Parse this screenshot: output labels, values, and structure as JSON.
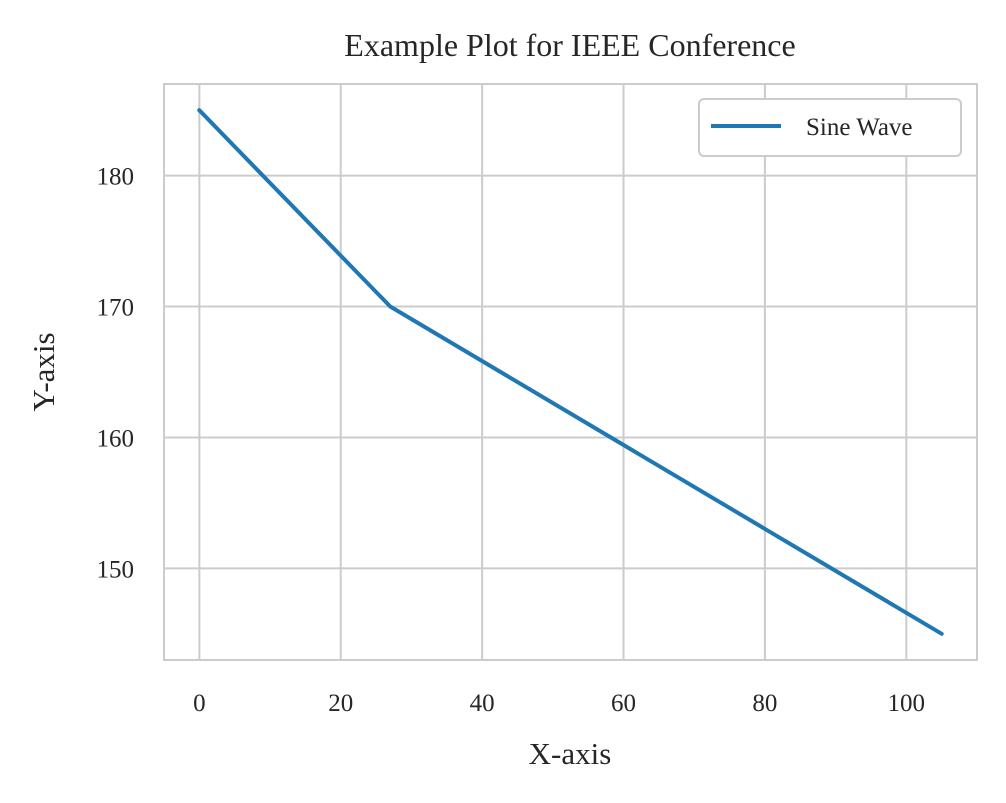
{
  "chart_data": {
    "type": "line",
    "title": "Example Plot for IEEE Conference",
    "xlabel": "X-axis",
    "ylabel": "Y-axis",
    "xlim": [
      -5,
      110
    ],
    "ylim": [
      143,
      187
    ],
    "xticks": [
      0,
      20,
      40,
      60,
      80,
      100
    ],
    "yticks": [
      150,
      160,
      170,
      180
    ],
    "grid": true,
    "legend_position": "top-right",
    "series": [
      {
        "name": "Sine Wave",
        "color": "#1f77b4",
        "x": [
          0,
          27,
          105
        ],
        "y": [
          185,
          170,
          145
        ]
      }
    ]
  }
}
